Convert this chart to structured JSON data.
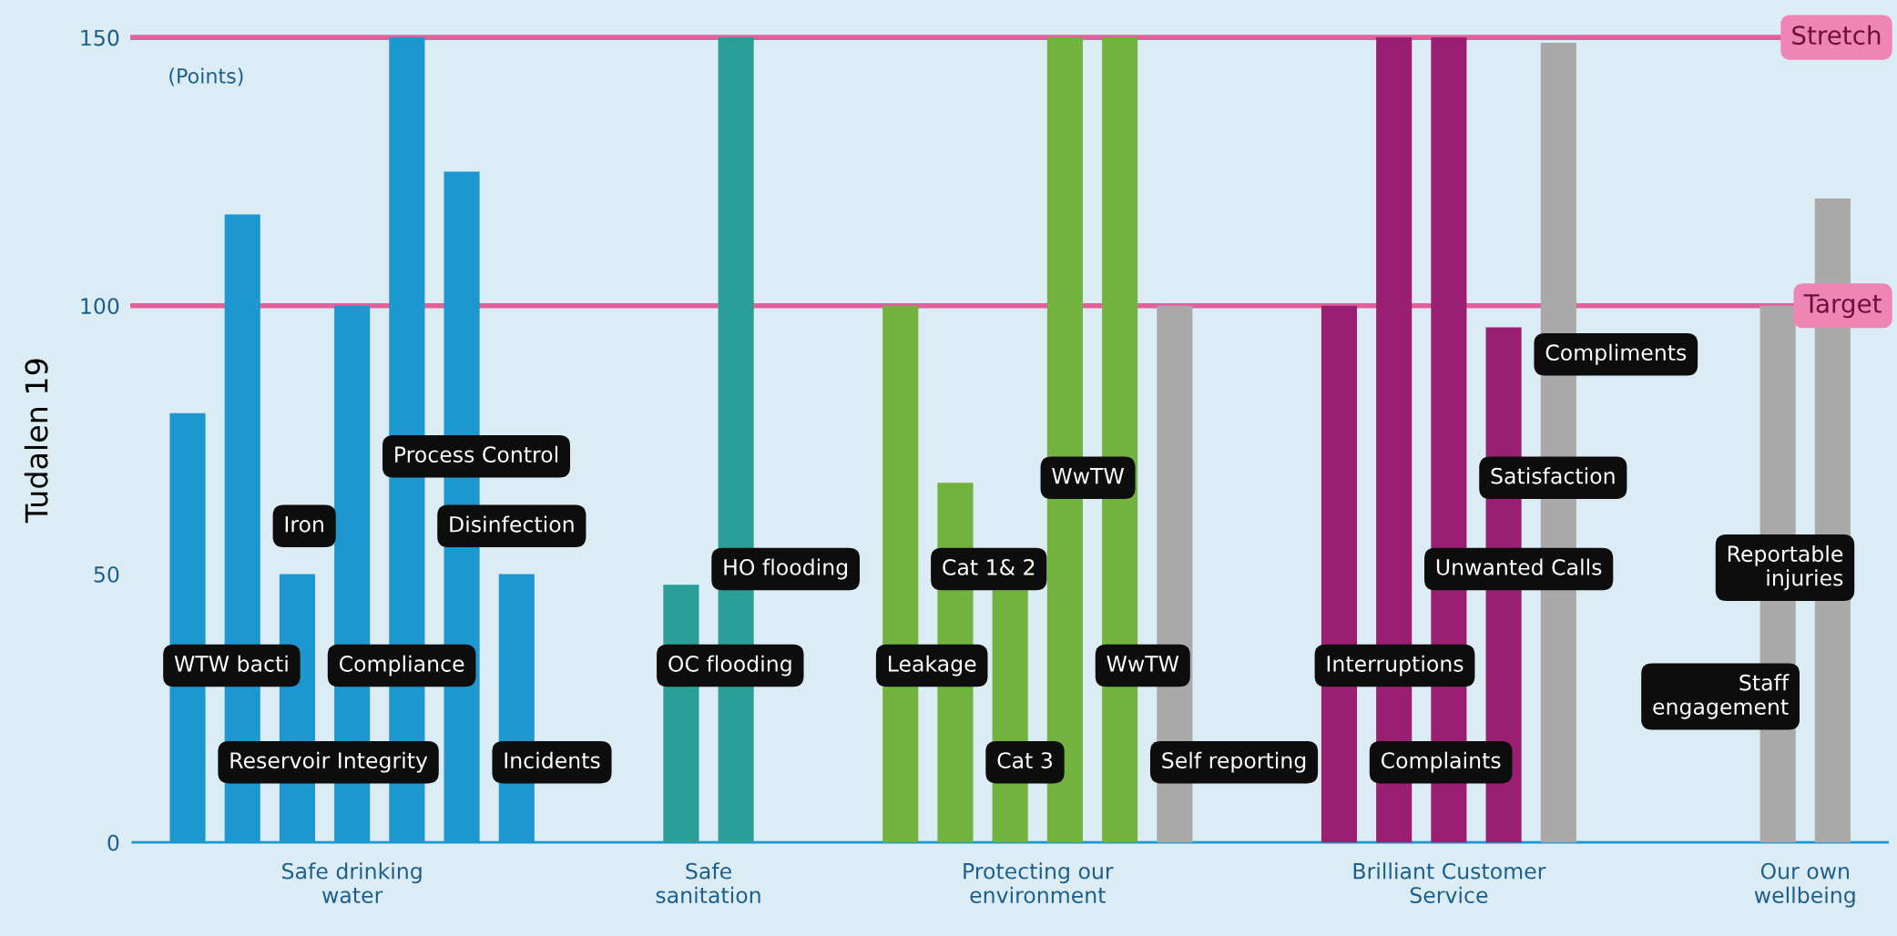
{
  "chart_data": {
    "type": "bar",
    "ylabel": "Tudalen 19",
    "categories": [
      null,
      null,
      null,
      null,
      null,
      null,
      null,
      null,
      null,
      null,
      null,
      null,
      null,
      null,
      null,
      null,
      null,
      null,
      null,
      null,
      null,
      null,
      null,
      null,
      null,
      null,
      null,
      null,
      null,
      null,
      null
    ],
    "values": [
      80,
      117,
      50,
      100,
      150,
      125,
      50,
      null,
      null,
      48,
      150,
      null,
      null,
      100,
      67,
      47,
      150,
      150,
      100,
      null,
      null,
      100,
      150,
      150,
      96,
      149,
      null,
      null,
      null,
      100,
      120
    ],
    "colors": [
      "#1d97d0",
      "#1d97d0",
      "#1d97d0",
      "#1d97d0",
      "#1d97d0",
      "#1d97d0",
      "#1d97d0",
      null,
      null,
      "#2a9f98",
      "#2a9f98",
      null,
      null,
      "#72b33f",
      "#72b33f",
      "#72b33f",
      "#72b33f",
      "#72b33f",
      "#a9a9a9",
      null,
      null,
      "#9a1f72",
      "#9a1f72",
      "#9a1f72",
      "#9a1f72",
      "#a9a9a9",
      null,
      null,
      null,
      "#a9a9a9",
      "#a9a9a9"
    ],
    "ylim": [
      0,
      150
    ],
    "yticks": [
      0,
      50,
      100,
      150
    ],
    "grid": false,
    "ref_lines": [
      {
        "axis": "y",
        "value": 150,
        "label": "Stretch",
        "color": "#e2609b"
      },
      {
        "axis": "y",
        "value": 100,
        "label": "Target",
        "color": "#e2609b"
      }
    ],
    "annotations": [
      "(Points)",
      "WTW bacti",
      "Reservoir Integrity",
      "Iron",
      "Compliance",
      "Process Control",
      "Disinfection",
      "Incidents",
      "OC flooding",
      "HO flooding",
      "Leakage",
      "Cat 1& 2",
      "Cat 3",
      "WwTW",
      "WwTW",
      "Self reporting",
      "Interruptions",
      "Complaints",
      "Unwanted Calls",
      "Satisfaction",
      "Compliments",
      "Staff\nengagement",
      "Reportable\ninjuries",
      "Safe drinking\nwater",
      "Safe\nsanitation",
      "Protecting our\nenvironment",
      "Brilliant Customer\nService",
      "Our own\nwellbeing"
    ]
  }
}
